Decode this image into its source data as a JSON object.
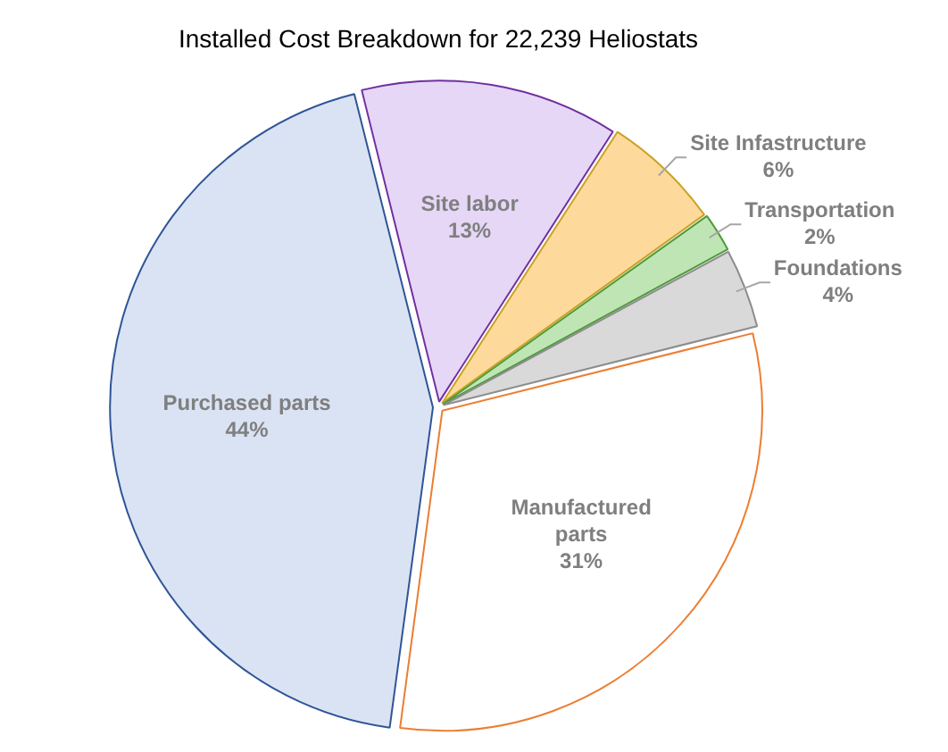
{
  "chart_data": {
    "type": "pie",
    "title": "Installed Cost Breakdown for 22,239 Heliostats",
    "categories": [
      "Site labor",
      "Site Infastructure",
      "Transportation",
      "Foundations",
      "Manufactured parts",
      "Purchased parts"
    ],
    "values": [
      13,
      6,
      2,
      4,
      31,
      44
    ],
    "value_labels": [
      "13%",
      "6%",
      "2%",
      "4%",
      "31%",
      "44%"
    ],
    "colors": [
      "#e6d7f7",
      "#fdd99b",
      "#bfe5b5",
      "#d9d9d9",
      "#ffffff",
      "#dae3f3"
    ]
  }
}
